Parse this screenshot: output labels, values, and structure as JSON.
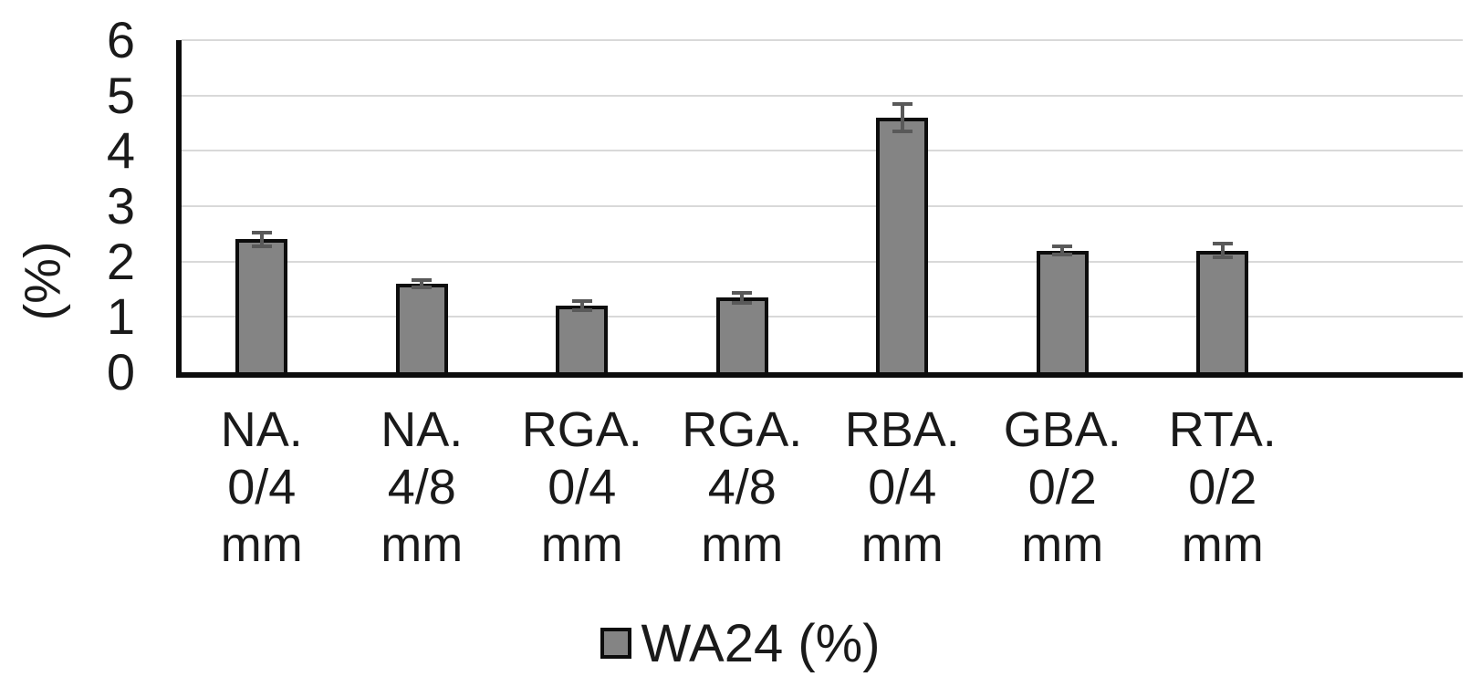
{
  "chart_data": {
    "type": "bar",
    "title": "",
    "xlabel": "",
    "ylabel": "(%)",
    "ylim": [
      0,
      6
    ],
    "yticks": [
      0,
      1,
      2,
      3,
      4,
      5,
      6
    ],
    "grid": true,
    "legend": {
      "position": "bottom",
      "label": "WA24 (%)"
    },
    "categories": [
      "NA. 0/4 mm",
      "NA. 4/8 mm",
      "RGA. 0/4 mm",
      "RGA. 4/8 mm",
      "RBA. 0/4 mm",
      "GBA. 0/2 mm",
      "RTA. 0/2 mm"
    ],
    "category_lines": [
      [
        "NA.",
        "0/4",
        "mm"
      ],
      [
        "NA.",
        "4/8",
        "mm"
      ],
      [
        "RGA.",
        "0/4",
        "mm"
      ],
      [
        "RGA.",
        "4/8",
        "mm"
      ],
      [
        "RBA.",
        "0/4",
        "mm"
      ],
      [
        "GBA.",
        "0/2",
        "mm"
      ],
      [
        "RTA.",
        "0/2",
        "mm"
      ]
    ],
    "series": [
      {
        "name": "WA24 (%)",
        "values": [
          2.4,
          1.6,
          1.2,
          1.35,
          4.6,
          2.2,
          2.2
        ],
        "errors": [
          0.13,
          0.06,
          0.08,
          0.09,
          0.25,
          0.08,
          0.13
        ]
      }
    ],
    "x_slots": 8
  },
  "colors": {
    "bar_fill": "#848484",
    "bar_border": "#0d0d0d",
    "gridline": "#d9d9d9",
    "axis": "#0d0d0d",
    "error_bar": "#595959",
    "text": "#1a1a1a",
    "background": "#ffffff"
  }
}
